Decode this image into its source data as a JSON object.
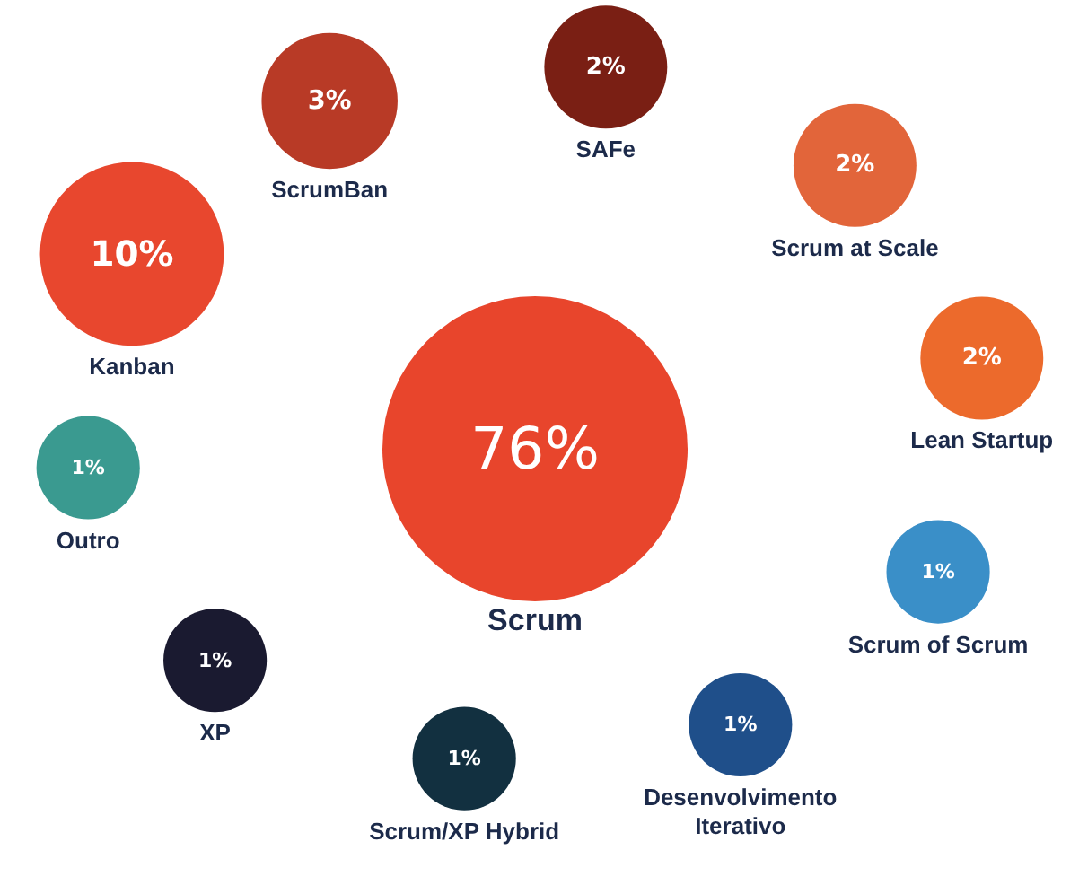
{
  "chart_data": {
    "type": "other",
    "categories": [
      "Scrum",
      "Kanban",
      "ScrumBan",
      "SAFe",
      "Scrum at Scale",
      "Lean Startup",
      "Scrum of Scrum",
      "Desenvolvimento Iterativo",
      "Scrum/XP Hybrid",
      "XP",
      "Outro"
    ],
    "values": [
      76,
      10,
      3,
      2,
      2,
      2,
      1,
      1,
      1,
      1,
      1
    ],
    "value_labels": [
      "76%",
      "10%",
      "3%",
      "2%",
      "2%",
      "2%",
      "1%",
      "1%",
      "1%",
      "1%",
      "1%"
    ],
    "colors": [
      "#e8452c",
      "#e8472e",
      "#b83a26",
      "#7a1f14",
      "#e2653a",
      "#ec6a2c",
      "#3a8fc8",
      "#1f4f8a",
      "#123040",
      "#1a1a30",
      "#3a9a90"
    ]
  }
}
